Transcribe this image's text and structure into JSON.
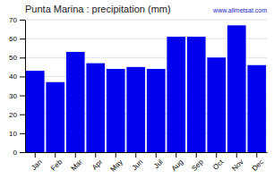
{
  "chart_data": {
    "type": "bar",
    "title": "Punta Marina : precipitation (mm)",
    "categories": [
      "Jan",
      "Feb",
      "Mar",
      "Apr",
      "May",
      "Jun",
      "Jul",
      "Aug",
      "Sep",
      "Oct",
      "Nov",
      "Dec"
    ],
    "values": [
      43,
      37,
      53,
      47,
      44,
      45,
      44,
      61,
      61,
      50,
      67,
      46
    ],
    "color": "#0000ee",
    "ylim": [
      0,
      70
    ],
    "yticks": [
      0,
      10,
      20,
      30,
      40,
      50,
      60,
      70
    ],
    "grid": true,
    "annotations": [
      "www.allmetsat.com"
    ]
  }
}
